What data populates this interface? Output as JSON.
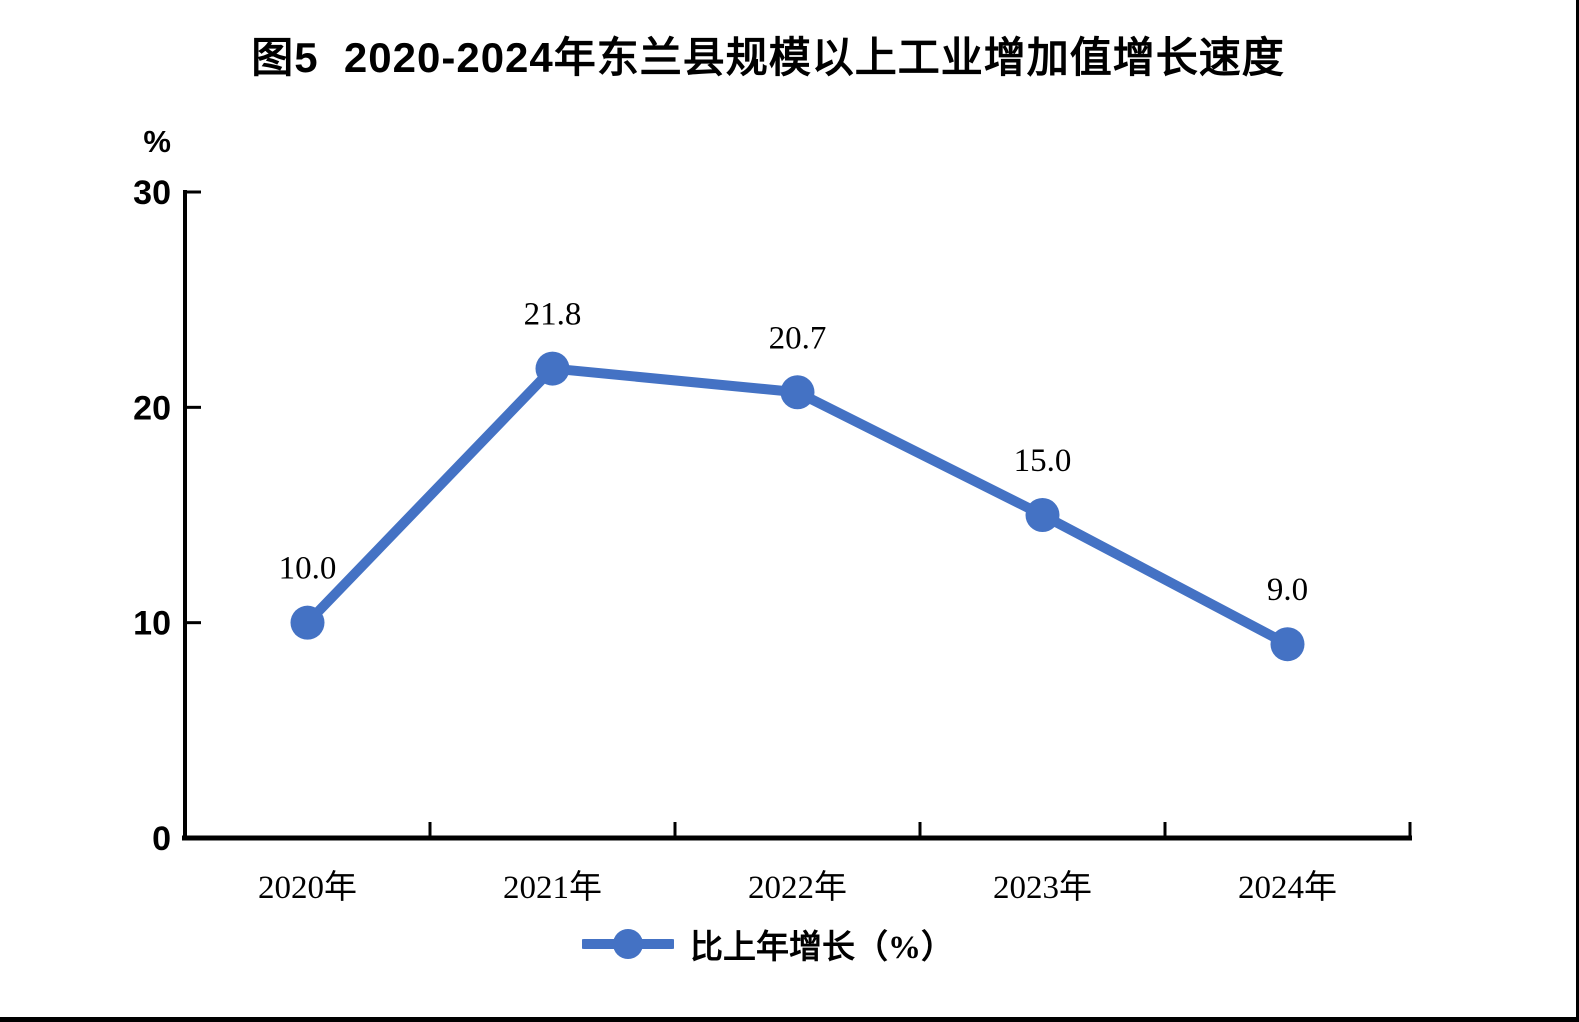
{
  "page": {
    "title": "图5  2020-2024年东兰县规模以上工业增加值增长速度"
  },
  "chart_data": {
    "type": "line",
    "title": "图5  2020-2024年东兰县规模以上工业增加值增长速度",
    "categories": [
      "2020年",
      "2021年",
      "2022年",
      "2023年",
      "2024年"
    ],
    "series": [
      {
        "name": "比上年增长（%）",
        "values": [
          10.0,
          21.8,
          20.7,
          15.0,
          9.0
        ]
      }
    ],
    "data_labels": [
      "10.0",
      "21.8",
      "20.7",
      "15.0",
      "9.0"
    ],
    "ylabel": "%",
    "yticks": [
      0,
      10,
      20,
      30
    ],
    "ylim": [
      0,
      30
    ],
    "grid": false,
    "legend_position": "bottom",
    "line_color": "#4472C4",
    "axis_color": "#000000",
    "text_color": "#000000"
  },
  "legend": {
    "label": "比上年增长（%）"
  }
}
